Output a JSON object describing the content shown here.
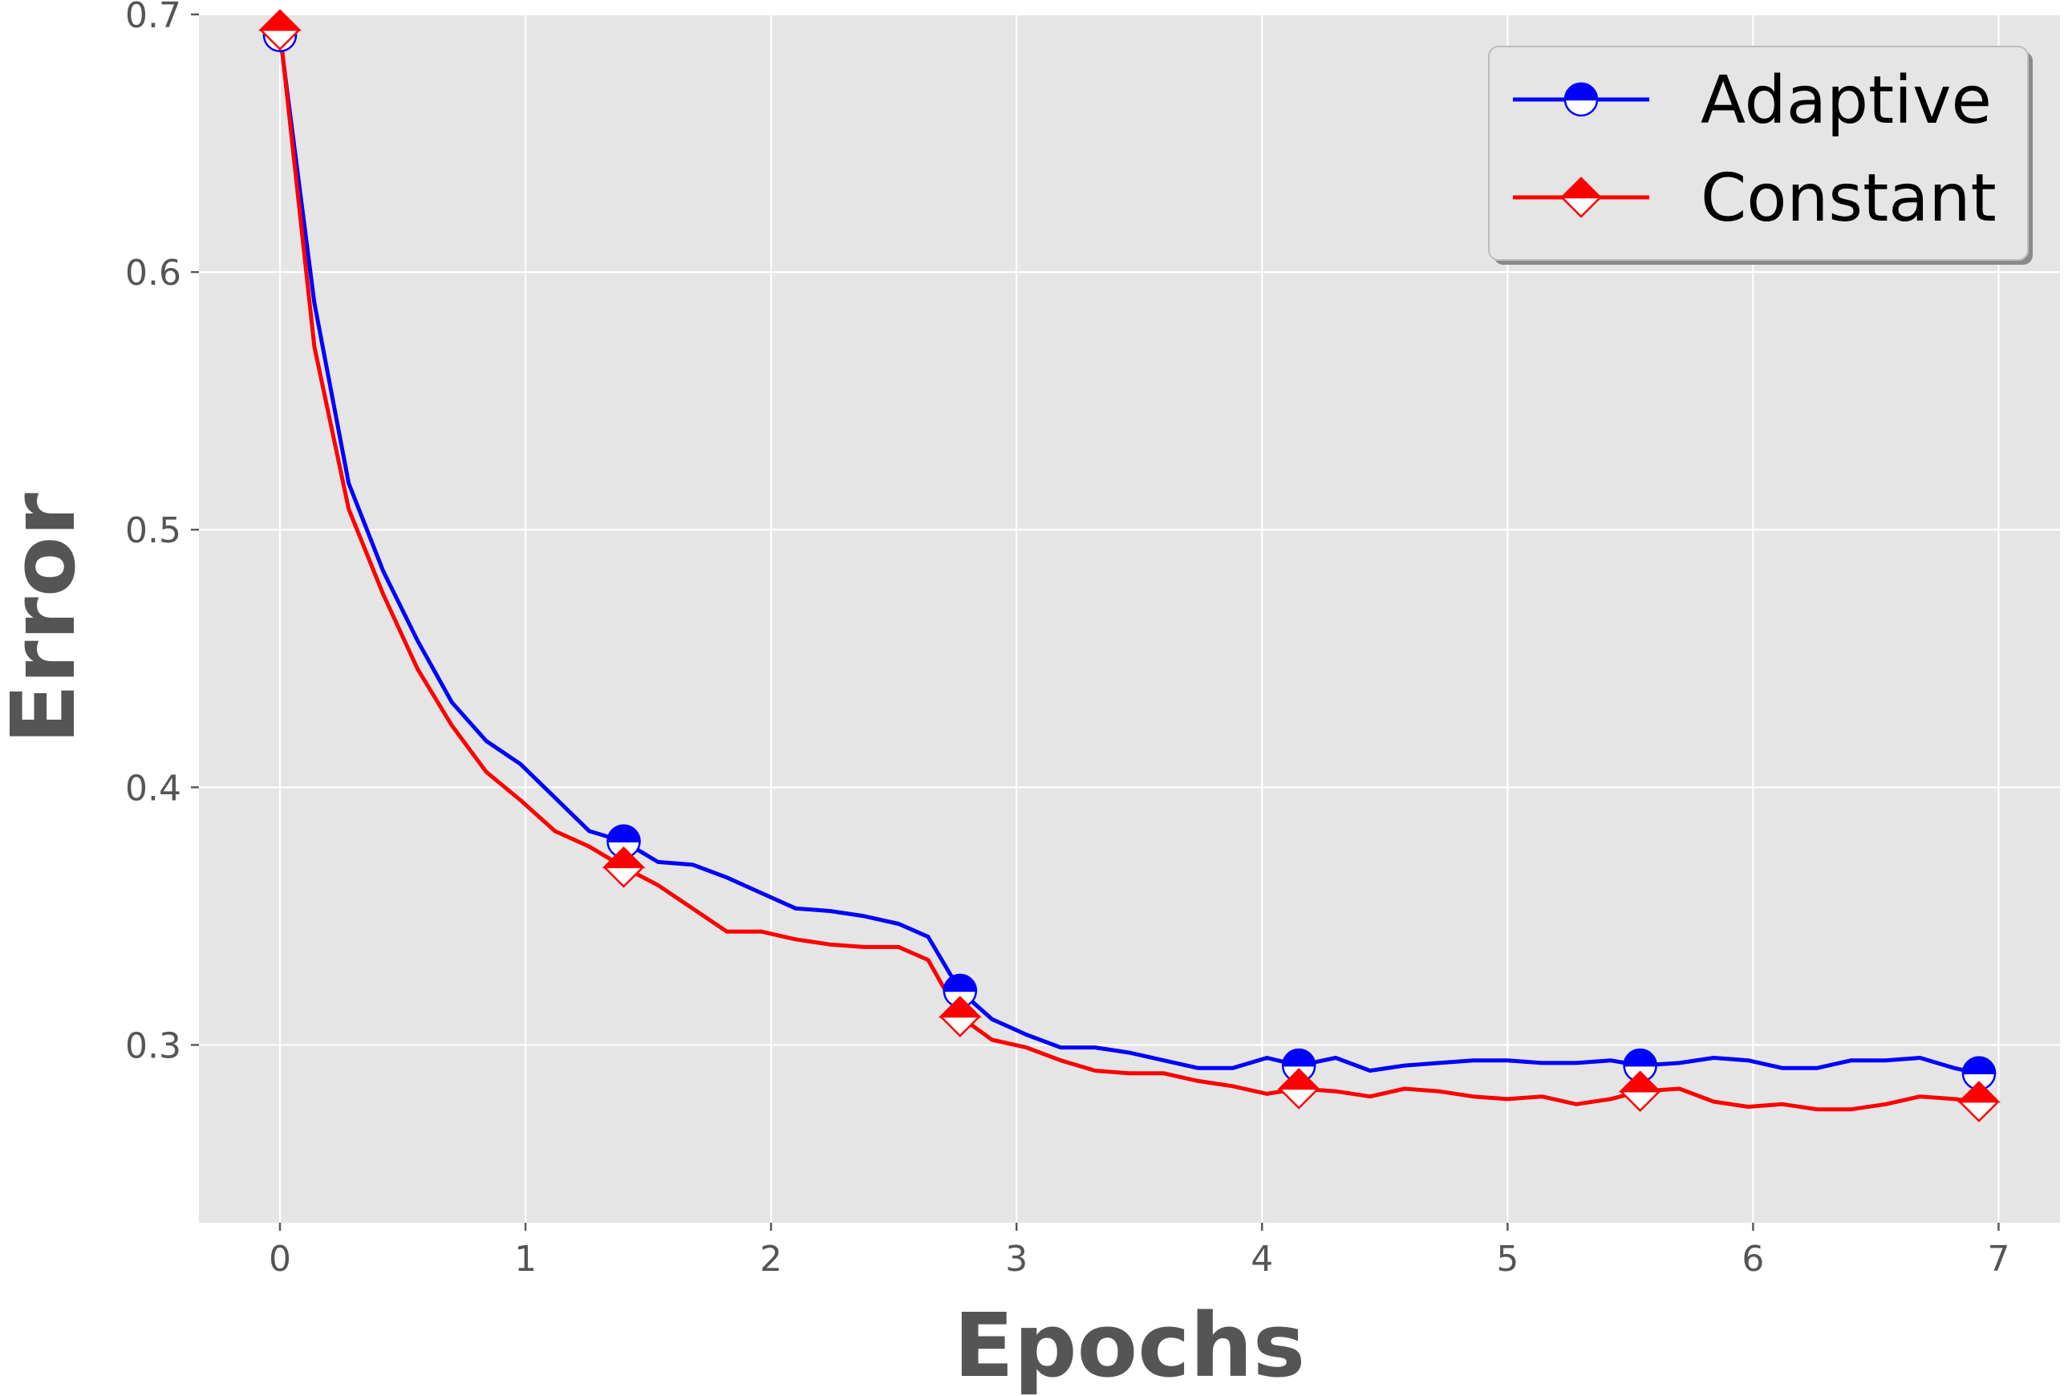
{
  "chart_data": {
    "type": "line",
    "title": "",
    "xlabel": "Epochs",
    "ylabel": "Error",
    "xlim": [
      -0.33,
      7.25
    ],
    "ylim": [
      0.231,
      0.7
    ],
    "xticks": [
      0,
      1,
      2,
      3,
      4,
      5,
      6,
      7
    ],
    "yticks": [
      0.3,
      0.4,
      0.5,
      0.6,
      0.7
    ],
    "grid": true,
    "legend_position": "top-right",
    "colors": {
      "plot_bg": "#e5e5e5",
      "grid": "#ffffff",
      "adaptive": "#0000ff",
      "constant": "#ff0000"
    },
    "series": [
      {
        "name": "Adaptive",
        "color": "#0000ff",
        "marker": "half-filled-circle",
        "x": [
          0,
          0.14,
          0.28,
          0.42,
          0.56,
          0.7,
          0.84,
          0.98,
          1.12,
          1.26,
          1.4,
          1.54,
          1.68,
          1.82,
          1.96,
          2.1,
          2.24,
          2.38,
          2.52,
          2.64,
          2.77,
          2.9,
          3.04,
          3.18,
          3.32,
          3.46,
          3.6,
          3.74,
          3.88,
          4.02,
          4.15,
          4.3,
          4.44,
          4.58,
          4.72,
          4.86,
          5.0,
          5.14,
          5.28,
          5.42,
          5.54,
          5.7,
          5.84,
          5.98,
          6.12,
          6.26,
          6.4,
          6.54,
          6.68,
          6.82,
          6.92
        ],
        "y": [
          0.692,
          0.588,
          0.518,
          0.484,
          0.457,
          0.433,
          0.418,
          0.409,
          0.396,
          0.383,
          0.379,
          0.371,
          0.37,
          0.365,
          0.359,
          0.353,
          0.352,
          0.35,
          0.347,
          0.342,
          0.321,
          0.31,
          0.304,
          0.299,
          0.299,
          0.297,
          0.294,
          0.291,
          0.291,
          0.295,
          0.292,
          0.295,
          0.29,
          0.292,
          0.293,
          0.294,
          0.294,
          0.293,
          0.293,
          0.294,
          0.292,
          0.293,
          0.295,
          0.294,
          0.291,
          0.291,
          0.294,
          0.294,
          0.295,
          0.291,
          0.289
        ],
        "marker_x": [
          0,
          1.4,
          2.77,
          4.15,
          5.54,
          6.92
        ],
        "marker_y": [
          0.692,
          0.379,
          0.321,
          0.292,
          0.292,
          0.289
        ]
      },
      {
        "name": "Constant",
        "color": "#ff0000",
        "marker": "half-filled-diamond",
        "x": [
          0,
          0.14,
          0.28,
          0.42,
          0.56,
          0.7,
          0.84,
          0.98,
          1.12,
          1.26,
          1.4,
          1.54,
          1.68,
          1.82,
          1.96,
          2.1,
          2.24,
          2.38,
          2.52,
          2.64,
          2.77,
          2.9,
          3.04,
          3.18,
          3.32,
          3.46,
          3.6,
          3.74,
          3.88,
          4.02,
          4.15,
          4.3,
          4.44,
          4.58,
          4.72,
          4.86,
          5.0,
          5.14,
          5.28,
          5.42,
          5.54,
          5.7,
          5.84,
          5.98,
          6.12,
          6.26,
          6.4,
          6.54,
          6.68,
          6.82,
          6.92
        ],
        "y": [
          0.694,
          0.571,
          0.508,
          0.475,
          0.446,
          0.424,
          0.406,
          0.395,
          0.383,
          0.377,
          0.369,
          0.362,
          0.353,
          0.344,
          0.344,
          0.341,
          0.339,
          0.338,
          0.338,
          0.333,
          0.311,
          0.302,
          0.299,
          0.294,
          0.29,
          0.289,
          0.289,
          0.286,
          0.284,
          0.281,
          0.283,
          0.282,
          0.28,
          0.283,
          0.282,
          0.28,
          0.279,
          0.28,
          0.277,
          0.279,
          0.282,
          0.283,
          0.278,
          0.276,
          0.277,
          0.275,
          0.275,
          0.277,
          0.28,
          0.279,
          0.278
        ],
        "marker_x": [
          0,
          1.4,
          2.77,
          4.15,
          5.54,
          6.92
        ],
        "marker_y": [
          0.694,
          0.369,
          0.311,
          0.283,
          0.282,
          0.278
        ]
      }
    ]
  }
}
